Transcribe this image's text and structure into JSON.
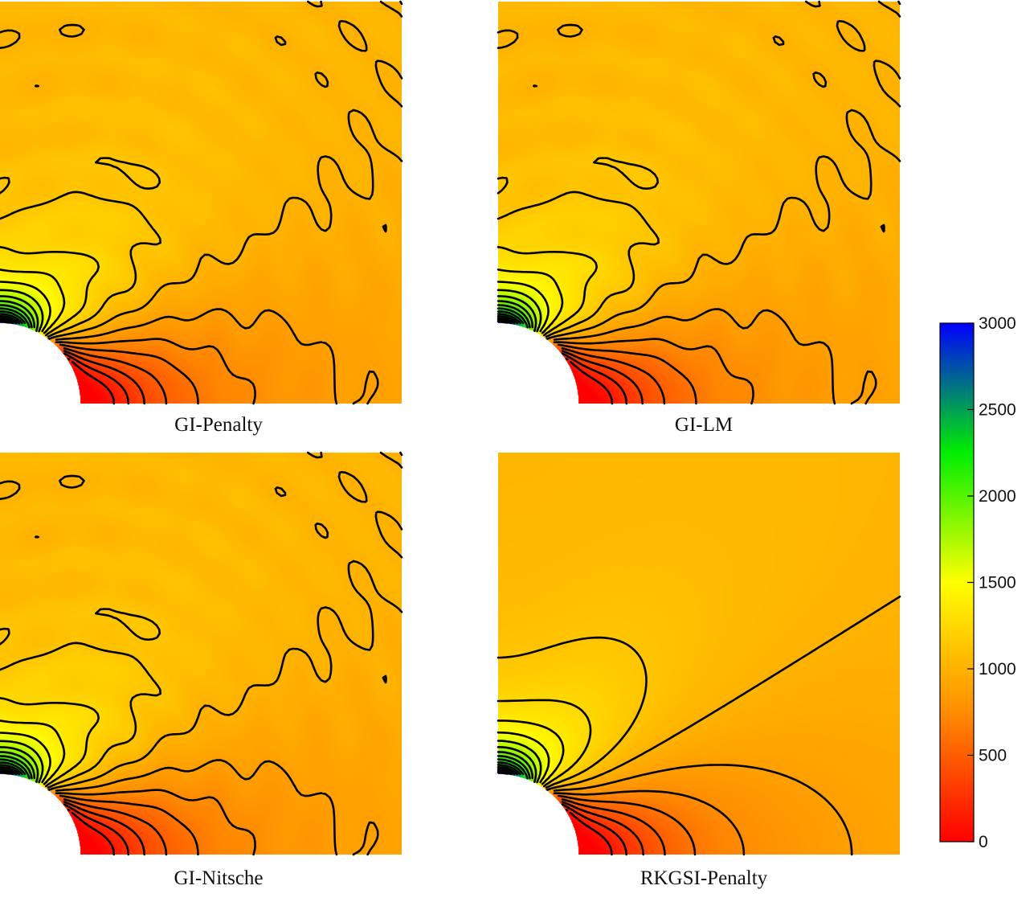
{
  "chart_data": {
    "type": "heatmap",
    "title": "",
    "layout": "2x2 grid of contour plots sharing one colorbar",
    "panels": [
      {
        "caption": "GI-Penalty",
        "contour_style": "oscillatory"
      },
      {
        "caption": "GI-LM",
        "contour_style": "oscillatory"
      },
      {
        "caption": "GI-Nitsche",
        "contour_style": "oscillatory"
      },
      {
        "caption": "RKGSI-Penalty",
        "contour_style": "smooth"
      }
    ],
    "colorbar": {
      "range": [
        0,
        3000
      ],
      "ticks": [
        0,
        500,
        1000,
        1500,
        2000,
        2500,
        3000
      ],
      "tick_labels": [
        "0",
        "500",
        "1000",
        "1500",
        "2000",
        "2500",
        "3000"
      ],
      "colormap": [
        "#ff0000",
        "#ff8c00",
        "#ffff00",
        "#00ee00",
        "#0000ff"
      ]
    },
    "contour_line_color": "#000000",
    "legend_placement": "right"
  }
}
